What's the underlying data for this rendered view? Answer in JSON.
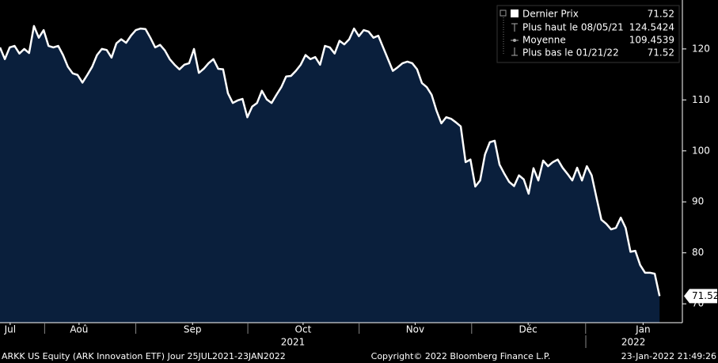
{
  "chart_data": {
    "type": "line",
    "x": [
      0,
      1,
      2,
      3,
      4,
      5,
      6,
      7,
      8,
      9,
      10,
      11,
      12,
      13,
      14,
      15,
      16,
      17,
      18,
      19,
      20,
      21,
      22,
      23,
      24,
      25,
      26,
      27,
      28,
      29,
      30,
      31,
      32,
      33,
      34,
      35,
      36,
      37,
      38,
      39,
      40,
      41,
      42,
      43,
      44,
      45,
      46,
      47,
      48,
      49,
      50,
      51,
      52,
      53,
      54,
      55,
      56,
      57,
      58,
      59,
      60,
      61,
      62,
      63,
      64,
      65,
      66,
      67,
      68,
      69,
      70,
      71,
      72,
      73,
      74,
      75,
      76,
      77,
      78,
      79,
      80,
      81,
      82,
      83,
      84,
      85,
      86,
      87,
      88,
      89,
      90,
      91,
      92,
      93,
      94,
      95,
      96,
      97,
      98,
      99,
      100,
      101,
      102,
      103,
      104,
      105,
      106,
      107,
      108,
      109,
      110,
      111,
      112,
      113,
      114,
      115,
      116,
      117,
      118,
      119,
      120,
      121,
      122,
      123,
      124,
      125,
      126,
      127,
      128,
      129,
      130,
      131,
      132,
      133,
      134,
      135,
      136
    ],
    "series": [
      {
        "name": "Dernier Prix",
        "color": "#ffffff",
        "fill": "#0a1f3c",
        "values": [
          120.3,
          118.0,
          120.3,
          120.6,
          119.1,
          120.0,
          119.2,
          124.5,
          122.2,
          123.7,
          120.6,
          120.3,
          120.6,
          118.8,
          116.5,
          115.2,
          114.9,
          113.4,
          114.9,
          116.5,
          118.8,
          120.0,
          119.8,
          118.3,
          121.1,
          121.9,
          121.2,
          122.6,
          123.7,
          124.0,
          123.9,
          122.2,
          120.3,
          120.8,
          119.7,
          118.0,
          116.9,
          116.0,
          116.9,
          117.2,
          120.0,
          115.3,
          116.1,
          117.2,
          118.0,
          116.1,
          116.0,
          111.3,
          109.4,
          109.9,
          110.2,
          106.6,
          108.7,
          109.4,
          111.8,
          110.1,
          109.4,
          111.0,
          112.5,
          114.6,
          114.7,
          115.7,
          116.9,
          118.8,
          118.0,
          118.4,
          116.9,
          120.6,
          120.3,
          119.1,
          121.6,
          120.9,
          121.9,
          124.0,
          122.5,
          123.7,
          123.4,
          122.2,
          122.6,
          120.3,
          118.0,
          115.7,
          116.4,
          117.2,
          117.5,
          117.2,
          116.0,
          113.3,
          112.5,
          111.0,
          107.9,
          105.4,
          106.6,
          106.3,
          105.6,
          104.8,
          97.8,
          98.3,
          93.0,
          94.2,
          99.3,
          101.7,
          102.0,
          97.3,
          95.5,
          93.9,
          93.1,
          95.2,
          94.4,
          91.6,
          96.6,
          94.2,
          98.1,
          97.0,
          97.8,
          98.3,
          96.7,
          95.5,
          94.2,
          96.7,
          94.2,
          97.0,
          95.2,
          90.8,
          86.5,
          85.7,
          84.6,
          84.9,
          86.9,
          84.9,
          80.2,
          80.4,
          77.6,
          76.1,
          76.1,
          75.9,
          71.52
        ]
      }
    ],
    "xlim": [
      0,
      140.7
    ],
    "xticks": [
      {
        "value": 2.1,
        "label": "Jul"
      },
      {
        "value": 16.3,
        "label": "Aoû"
      },
      {
        "value": 39.7,
        "label": "Sep"
      },
      {
        "value": 62.5,
        "label": "Oct"
      },
      {
        "value": 85.6,
        "label": "Nov"
      },
      {
        "value": 108.9,
        "label": "Déc"
      },
      {
        "value": 132.6,
        "label": "Jan"
      }
    ],
    "years": [
      {
        "value": 60.4,
        "label": "2021"
      },
      {
        "value": 130.6,
        "label": "2022"
      }
    ],
    "ylim": [
      66.3,
      129.6
    ],
    "yticks": [
      70,
      80,
      90,
      100,
      110,
      120
    ],
    "legend": [
      {
        "label": "Dernier Prix",
        "value": "71.52"
      },
      {
        "label": "Plus haut le 08/05/21",
        "value": "124.5424"
      },
      {
        "label": "Moyenne",
        "value": "109.4539"
      },
      {
        "label": "Plus bas le 01/21/22",
        "value": "71.52"
      }
    ],
    "footer": {
      "left": "ARKK US Equity (ARK Innovation ETF)  Jour 25JUL2021-23JAN2022",
      "center": "Copyright© 2022 Bloomberg Finance L.P.",
      "right": "23-Jan-2022 21:49:26"
    }
  }
}
